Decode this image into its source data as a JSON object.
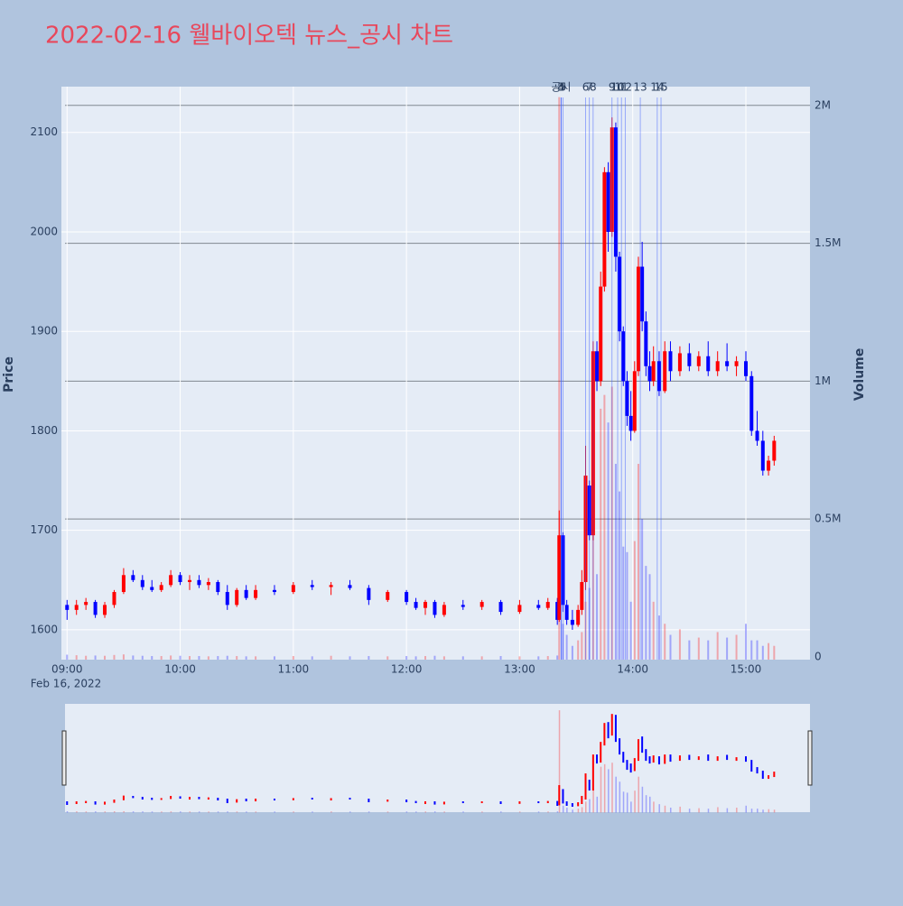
{
  "chart_data": {
    "type": "candlestick",
    "title": "2022-02-16 웰바이오텍 뉴스_공시 차트",
    "y_label": "Price",
    "y2_label": "Volume",
    "x_date_label": "Feb 16, 2022",
    "increasing_color": "#ff0000",
    "decreasing_color": "#0000ff",
    "x": [
      "09:00",
      "09:05",
      "09:10",
      "09:15",
      "09:20",
      "09:25",
      "09:30",
      "09:35",
      "09:40",
      "09:45",
      "09:50",
      "09:55",
      "10:00",
      "10:05",
      "10:10",
      "10:15",
      "10:20",
      "10:25",
      "10:30",
      "10:35",
      "10:40",
      "10:50",
      "11:00",
      "11:10",
      "11:20",
      "11:30",
      "11:40",
      "11:50",
      "12:00",
      "12:05",
      "12:10",
      "12:15",
      "12:20",
      "12:30",
      "12:40",
      "12:50",
      "13:00",
      "13:10",
      "13:15",
      "13:20",
      "13:21",
      "13:23",
      "13:25",
      "13:28",
      "13:31",
      "13:33",
      "13:35",
      "13:37",
      "13:39",
      "13:41",
      "13:43",
      "13:45",
      "13:47",
      "13:49",
      "13:51",
      "13:53",
      "13:55",
      "13:57",
      "13:59",
      "14:01",
      "14:03",
      "14:05",
      "14:07",
      "14:09",
      "14:11",
      "14:14",
      "14:17",
      "14:20",
      "14:25",
      "14:30",
      "14:35",
      "14:40",
      "14:45",
      "14:50",
      "14:55",
      "15:00",
      "15:03",
      "15:06",
      "15:09",
      "15:12",
      "15:15"
    ],
    "open": [
      1625,
      1620,
      1625,
      1628,
      1615,
      1625,
      1638,
      1655,
      1650,
      1643,
      1640,
      1645,
      1655,
      1648,
      1650,
      1645,
      1648,
      1638,
      1625,
      1640,
      1632,
      1640,
      1638,
      1645,
      1643,
      1645,
      1642,
      1630,
      1638,
      1628,
      1622,
      1628,
      1615,
      1625,
      1623,
      1628,
      1618,
      1625,
      1622,
      1628,
      1610,
      1695,
      1625,
      1610,
      1605,
      1620,
      1648,
      1745,
      1695,
      1880,
      1850,
      1945,
      2060,
      2000,
      2105,
      1975,
      1900,
      1850,
      1815,
      1800,
      1860,
      1965,
      1910,
      1865,
      1850,
      1870,
      1840,
      1880,
      1860,
      1878,
      1865,
      1875,
      1860,
      1870,
      1865,
      1870,
      1855,
      1800,
      1790,
      1760,
      1770
    ],
    "high": [
      1630,
      1630,
      1632,
      1630,
      1628,
      1640,
      1662,
      1660,
      1655,
      1650,
      1648,
      1660,
      1658,
      1655,
      1655,
      1652,
      1650,
      1645,
      1642,
      1645,
      1645,
      1645,
      1648,
      1650,
      1648,
      1650,
      1645,
      1640,
      1640,
      1632,
      1630,
      1630,
      1628,
      1630,
      1630,
      1630,
      1630,
      1630,
      1632,
      1632,
      1720,
      1698,
      1630,
      1620,
      1625,
      1660,
      1785,
      1750,
      1890,
      1890,
      1960,
      2065,
      2070,
      2115,
      2110,
      1980,
      1905,
      1860,
      1840,
      1870,
      1975,
      1990,
      1920,
      1880,
      1885,
      1880,
      1890,
      1890,
      1885,
      1888,
      1880,
      1890,
      1880,
      1888,
      1875,
      1880,
      1860,
      1820,
      1800,
      1775,
      1795
    ],
    "low": [
      1610,
      1615,
      1620,
      1612,
      1612,
      1622,
      1636,
      1648,
      1640,
      1638,
      1638,
      1643,
      1645,
      1640,
      1642,
      1640,
      1635,
      1620,
      1623,
      1630,
      1630,
      1635,
      1636,
      1640,
      1635,
      1640,
      1625,
      1628,
      1625,
      1620,
      1615,
      1612,
      1613,
      1620,
      1620,
      1615,
      1616,
      1620,
      1620,
      1605,
      1608,
      1618,
      1605,
      1600,
      1603,
      1615,
      1640,
      1690,
      1690,
      1840,
      1845,
      1940,
      1980,
      1995,
      1960,
      1890,
      1845,
      1805,
      1790,
      1798,
      1855,
      1900,
      1855,
      1840,
      1845,
      1835,
      1838,
      1850,
      1855,
      1860,
      1860,
      1855,
      1855,
      1860,
      1855,
      1850,
      1795,
      1785,
      1755,
      1755,
      1765
    ],
    "close": [
      1620,
      1625,
      1628,
      1615,
      1625,
      1638,
      1655,
      1650,
      1643,
      1640,
      1645,
      1655,
      1648,
      1650,
      1645,
      1648,
      1638,
      1625,
      1640,
      1632,
      1640,
      1638,
      1645,
      1643,
      1645,
      1642,
      1630,
      1638,
      1628,
      1622,
      1628,
      1615,
      1625,
      1623,
      1628,
      1618,
      1625,
      1622,
      1628,
      1610,
      1695,
      1625,
      1610,
      1605,
      1620,
      1648,
      1755,
      1695,
      1880,
      1850,
      1945,
      2060,
      2000,
      2105,
      1975,
      1900,
      1850,
      1815,
      1800,
      1860,
      1965,
      1910,
      1865,
      1850,
      1870,
      1840,
      1880,
      1860,
      1878,
      1865,
      1875,
      1860,
      1870,
      1865,
      1870,
      1855,
      1800,
      1790,
      1760,
      1770,
      1790
    ],
    "volume": [
      8000,
      6000,
      4000,
      5000,
      4000,
      7000,
      9000,
      5000,
      4000,
      3000,
      3000,
      5000,
      4000,
      3000,
      3000,
      2000,
      3000,
      4000,
      3000,
      2000,
      2000,
      2000,
      3000,
      2000,
      4000,
      2000,
      3000,
      2000,
      3000,
      2000,
      3000,
      4000,
      2000,
      2000,
      2000,
      3000,
      2000,
      2000,
      3000,
      5000,
      2030000,
      120000,
      80000,
      40000,
      60000,
      90000,
      200000,
      250000,
      450000,
      300000,
      900000,
      950000,
      850000,
      980000,
      700000,
      600000,
      400000,
      380000,
      200000,
      420000,
      700000,
      500000,
      330000,
      300000,
      200000,
      150000,
      120000,
      80000,
      100000,
      60000,
      70000,
      60000,
      90000,
      70000,
      80000,
      120000,
      60000,
      60000,
      40000,
      50000,
      40000
    ],
    "annotations": [
      {
        "x": "13:22",
        "label": "공시"
      },
      {
        "x": "13:22",
        "label": "3"
      },
      {
        "x": "13:22",
        "label": "4"
      },
      {
        "x": "13:23",
        "label": "5"
      },
      {
        "x": "13:35",
        "label": "6"
      },
      {
        "x": "13:37",
        "label": "7"
      },
      {
        "x": "13:39",
        "label": "8"
      },
      {
        "x": "13:49",
        "label": "9"
      },
      {
        "x": "13:52",
        "label": "10"
      },
      {
        "x": "13:54",
        "label": "11"
      },
      {
        "x": "13:56",
        "label": "12"
      },
      {
        "x": "14:04",
        "label": "13"
      },
      {
        "x": "14:13",
        "label": "14"
      },
      {
        "x": "14:15",
        "label": "15"
      }
    ],
    "xlim": [
      "08:57",
      "15:34"
    ],
    "xticks": [
      "09:00",
      "10:00",
      "11:00",
      "12:00",
      "13:00",
      "14:00",
      "15:00"
    ],
    "ylim": [
      1570,
      2146
    ],
    "yticks": [
      1600,
      1700,
      1800,
      1900,
      2000,
      2100
    ],
    "y2lim": [
      -10000,
      2068000
    ],
    "y2ticks": [
      0,
      {
        "value": 500000,
        "label": "0.5M"
      },
      {
        "value": 1000000,
        "label": "1M"
      },
      {
        "value": 1500000,
        "label": "1.5M"
      },
      {
        "value": 2000000,
        "label": "2M"
      }
    ],
    "grid": true,
    "range_slider": true
  }
}
